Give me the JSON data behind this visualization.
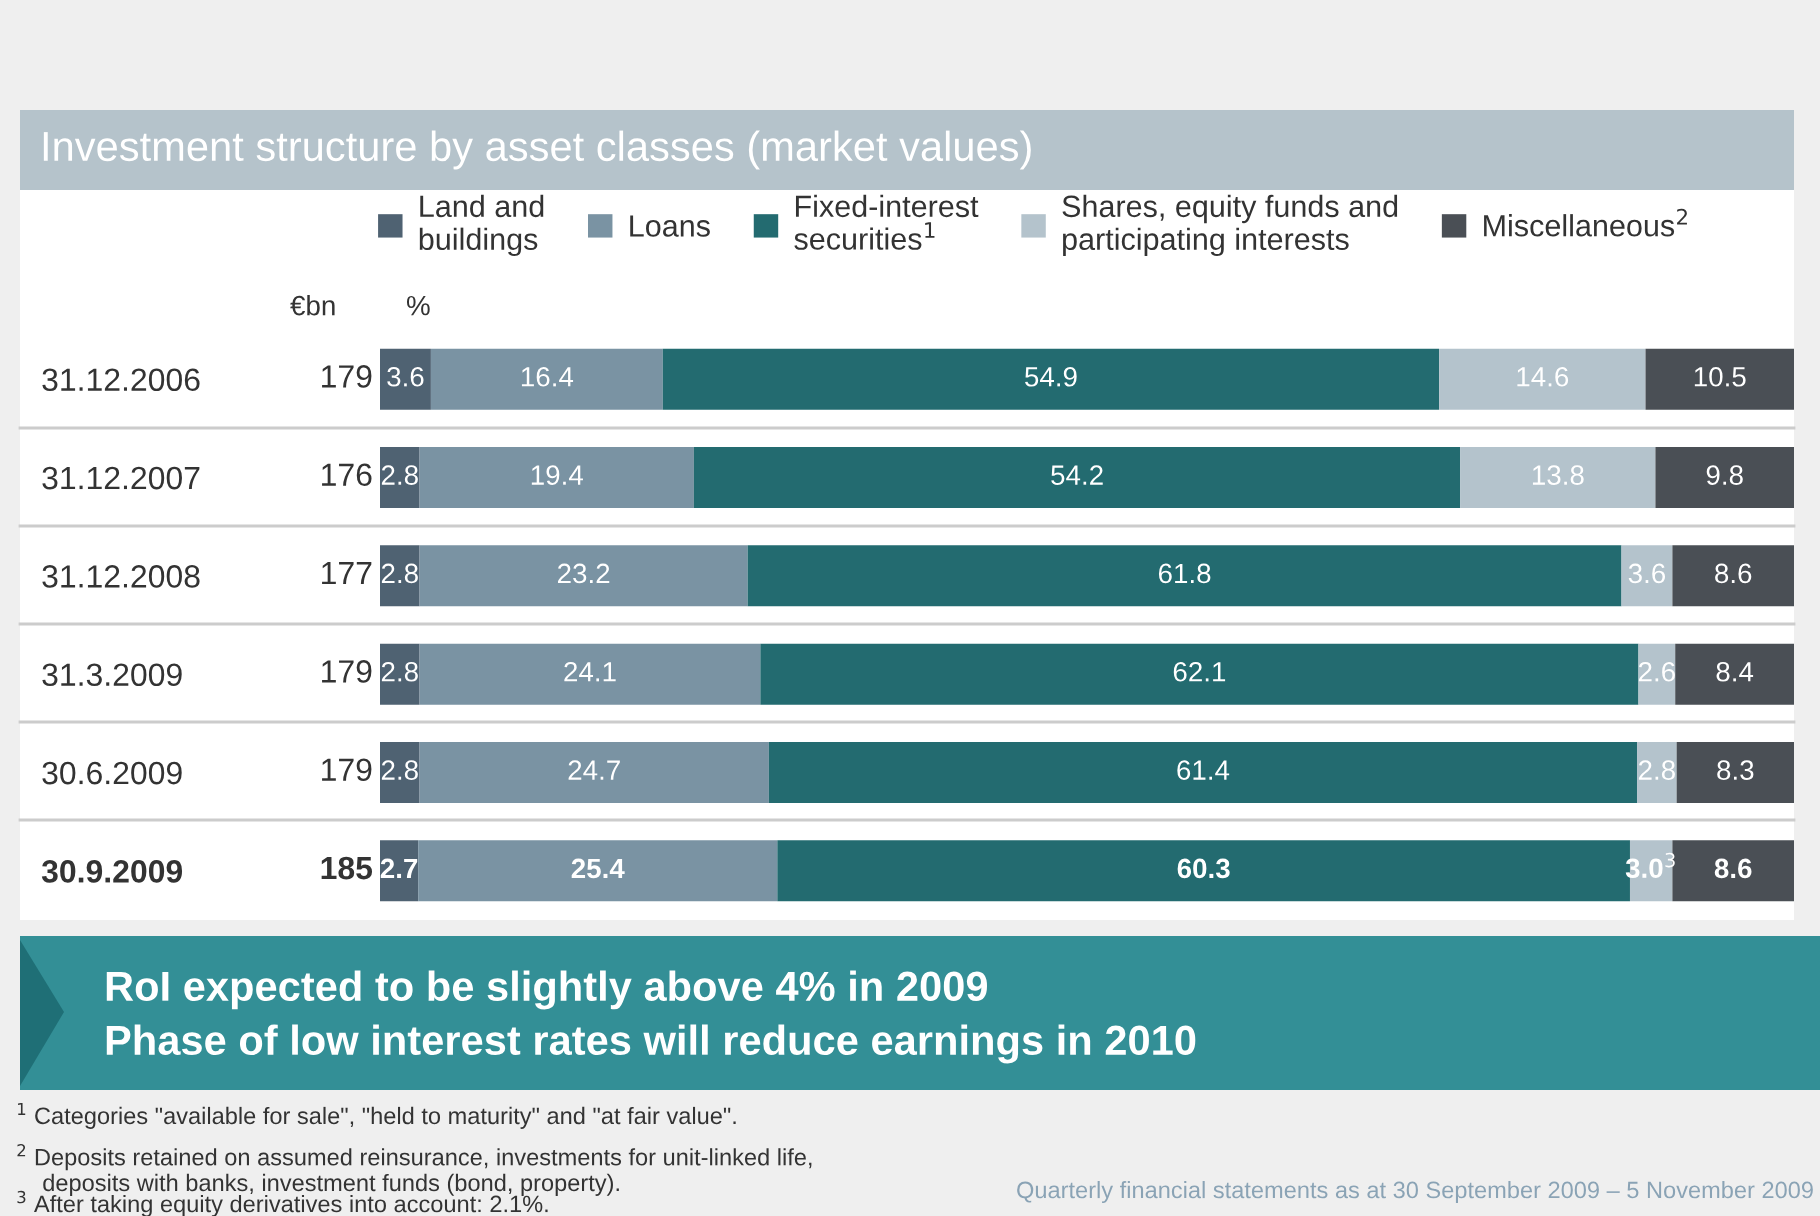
{
  "chart_data": {
    "type": "bar",
    "orientation": "horizontal",
    "stacked": true,
    "title": "Investment structure by asset classes (market values)",
    "categories": [
      "31.12.2006",
      "31.12.2007",
      "31.12.2008",
      "31.3.2009",
      "30.6.2009",
      "30.9.2009"
    ],
    "series": [
      {
        "name": "Land and\nbuildings",
        "color": "#4f6272",
        "values": [
          3.6,
          2.8,
          2.8,
          2.8,
          2.8,
          2.7
        ]
      },
      {
        "name": "Loans",
        "color": "#7a93a3",
        "values": [
          16.4,
          19.4,
          23.2,
          24.1,
          24.7,
          25.4
        ]
      },
      {
        "name": "Fixed-interest\nsecurities$^{1}$",
        "color": "#236b70",
        "values": [
          54.9,
          54.2,
          61.8,
          62.1,
          61.4,
          60.3
        ]
      },
      {
        "name": "Shares, equity funds and\nparticipating interests",
        "color": "#b4c3cc",
        "values": [
          14.6,
          13.8,
          3.6,
          2.6,
          2.8,
          3.0
        ],
        "value_labels": [
          "14.6",
          "13.8",
          "3.6",
          "2.6",
          "2.8",
          "3.0$^{3}$"
        ]
      },
      {
        "name": "Miscellaneous$^{2}$",
        "color": "#4a4f55",
        "values": [
          10.5,
          9.8,
          8.6,
          8.4,
          8.3,
          8.6
        ]
      }
    ],
    "xlim": [
      0,
      100
    ],
    "data_labels": true,
    "legend": "top",
    "tick_labels": "y",
    "annotations": [
      "179",
      "176",
      "177",
      "179",
      "179",
      "185",
      "€bn",
      "%",
      "RoI expected to be slightly above 4% in 2009",
      "Phase of low interest rates will reduce earnings in 2010",
      "$^{1}$ Categories \"available for sale\", \"held to maturity\" and \"at fair value\".",
      "$^{2}$ Deposits retained on assumed reinsurance, investments for unit-linked life,\n    deposits with banks, investment funds (bond, property).",
      "$^{3}$ After taking equity derivatives into account: 2.1%.",
      "Quarterly financial statements as at 30 September 2009 – 5 November 2009"
    ]
  }
}
